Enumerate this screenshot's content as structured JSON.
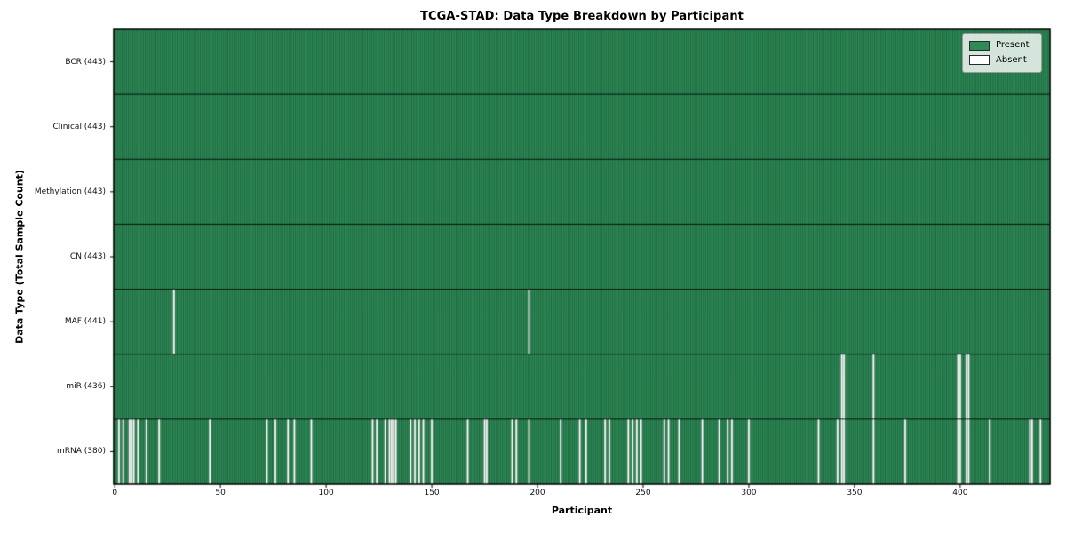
{
  "title": "TCGA-STAD: Data Type Breakdown by Participant",
  "xlabel": "Participant",
  "ylabel": "Data Type (Total Sample Count)",
  "colors": {
    "present": "#2e8b57",
    "absent": "#ffffff",
    "bar_edge": "rgba(5,35,20,0.5)",
    "row_separator": "rgba(0,0,0,0.85)",
    "plot_border": "#000000",
    "legend_border": "#9a9a9a"
  },
  "chart_data": {
    "type": "heatmap",
    "title": "TCGA-STAD: Data Type Breakdown by Participant",
    "xlabel": "Participant",
    "ylabel": "Data Type (Total Sample Count)",
    "n_participants": 443,
    "x_axis": {
      "ticks": [
        0,
        50,
        100,
        150,
        200,
        250,
        300,
        350,
        400
      ],
      "range": [
        0,
        443
      ]
    },
    "legend": [
      {
        "label": "Present",
        "color": "#2e8b57"
      },
      {
        "label": "Absent",
        "color": "#ffffff"
      }
    ],
    "legend_position": "upper right",
    "rows": [
      {
        "name": "BCR",
        "label": "BCR (443)",
        "total": 443,
        "absent": []
      },
      {
        "name": "Clinical",
        "label": "Clinical (443)",
        "total": 443,
        "absent": []
      },
      {
        "name": "Methylation",
        "label": "Methylation (443)",
        "total": 443,
        "absent": []
      },
      {
        "name": "CN",
        "label": "CN (443)",
        "total": 443,
        "absent": []
      },
      {
        "name": "MAF",
        "label": "MAF (441)",
        "total": 441,
        "absent": [
          28,
          196
        ]
      },
      {
        "name": "miR",
        "label": "miR (436)",
        "total": 436,
        "absent": [
          344,
          345,
          359,
          399,
          400,
          403,
          404
        ]
      },
      {
        "name": "mRNA",
        "label": "mRNA (380)",
        "total": 380,
        "absent": [
          2,
          4,
          7,
          8,
          9,
          11,
          15,
          21,
          45,
          72,
          76,
          82,
          85,
          93,
          122,
          124,
          128,
          130,
          131,
          132,
          133,
          140,
          142,
          144,
          146,
          150,
          167,
          175,
          176,
          188,
          190,
          196,
          211,
          220,
          223,
          232,
          234,
          243,
          245,
          247,
          249,
          260,
          262,
          267,
          278,
          286,
          290,
          292,
          300,
          333,
          342,
          344,
          345,
          359,
          374,
          399,
          400,
          403,
          404,
          414,
          433,
          434,
          438
        ]
      }
    ]
  }
}
